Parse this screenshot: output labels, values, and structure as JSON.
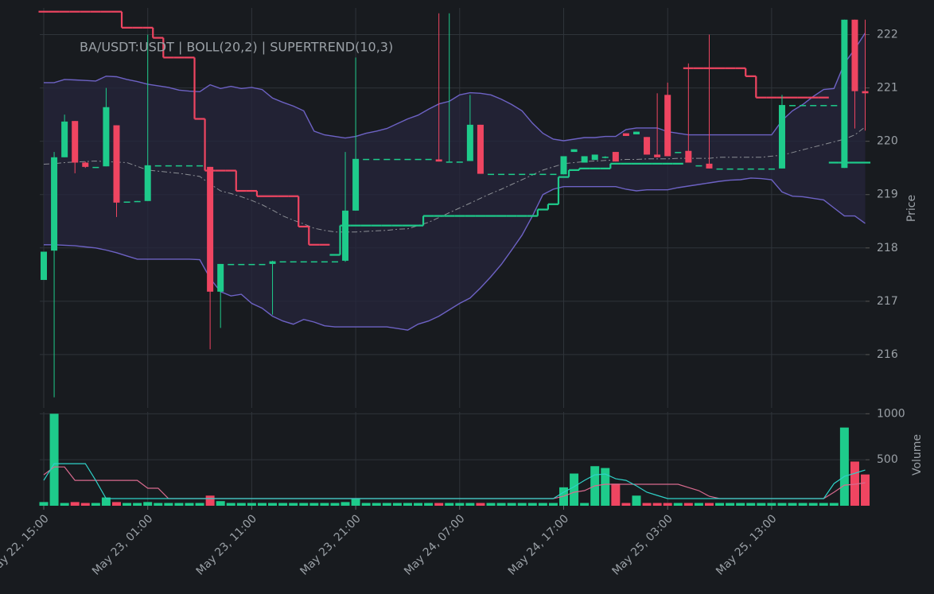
{
  "chart_data": {
    "type": "candlestick",
    "title": "BA/USDT:USDT | BOLL(20,2) | SUPERTREND(10,3)",
    "categories": [
      "May 22, 15:00",
      null,
      null,
      null,
      null,
      null,
      null,
      null,
      null,
      null,
      "May 23, 01:00",
      null,
      null,
      null,
      null,
      null,
      null,
      null,
      null,
      null,
      "May 23, 11:00",
      null,
      null,
      null,
      null,
      null,
      null,
      null,
      null,
      null,
      "May 23, 21:00",
      null,
      null,
      null,
      null,
      null,
      null,
      null,
      null,
      null,
      "May 24, 07:00",
      null,
      null,
      null,
      null,
      null,
      null,
      null,
      null,
      null,
      "May 24, 17:00",
      null,
      null,
      null,
      null,
      null,
      null,
      null,
      null,
      null,
      "May 25, 03:00",
      null,
      null,
      null,
      null,
      null,
      null,
      null,
      null,
      null,
      "May 25, 13:00",
      null,
      null,
      null,
      null,
      null,
      null,
      null,
      null,
      null
    ],
    "open": [
      217.4,
      217.95,
      219.7,
      220.38,
      219.6,
      219.52,
      219.53,
      220.3,
      218.87,
      218.87,
      218.88,
      219.55,
      219.55,
      219.55,
      219.55,
      219.55,
      219.52,
      217.18,
      217.7,
      217.7,
      217.7,
      217.7,
      217.7,
      217.75,
      217.75,
      217.75,
      217.75,
      217.75,
      217.75,
      217.76,
      218.7,
      219.67,
      219.67,
      219.67,
      219.67,
      219.67,
      219.67,
      219.67,
      219.66,
      219.62,
      219.62,
      219.63,
      220.31,
      219.39,
      219.39,
      219.39,
      219.39,
      219.39,
      219.39,
      219.39,
      219.38,
      219.8,
      219.6,
      219.65,
      219.7,
      219.8,
      220.15,
      220.13,
      220.08,
      219.75,
      220.87,
      219.8,
      219.82,
      219.55,
      219.58,
      219.49,
      219.49,
      219.49,
      219.49,
      219.49,
      219.49,
      219.49,
      220.68,
      220.68,
      220.68,
      220.68,
      220.68,
      219.5,
      222.28,
      220.94
    ],
    "high": [
      217.93,
      219.8,
      220.5,
      220.38,
      219.62,
      219.52,
      221.0,
      220.3,
      218.87,
      218.88,
      222.0,
      219.55,
      219.55,
      219.55,
      219.55,
      219.55,
      219.52,
      217.7,
      217.7,
      217.7,
      217.7,
      217.7,
      217.76,
      217.75,
      217.75,
      217.75,
      217.75,
      217.75,
      217.75,
      219.8,
      221.57,
      219.67,
      219.67,
      219.67,
      219.67,
      219.67,
      219.67,
      219.67,
      222.4,
      222.4,
      219.62,
      220.87,
      220.31,
      219.39,
      219.39,
      219.39,
      219.39,
      219.39,
      219.39,
      219.39,
      219.72,
      219.85,
      219.72,
      219.75,
      219.72,
      219.8,
      220.15,
      220.18,
      220.08,
      220.9,
      221.1,
      219.8,
      221.46,
      219.55,
      222.0,
      219.49,
      219.49,
      219.49,
      219.49,
      219.49,
      219.49,
      220.87,
      220.68,
      220.68,
      220.68,
      220.68,
      220.68,
      222.28,
      222.28,
      222.28
    ],
    "low": [
      217.4,
      215.2,
      219.7,
      219.4,
      219.5,
      219.52,
      219.53,
      218.58,
      218.87,
      218.87,
      218.88,
      219.55,
      219.55,
      219.55,
      219.55,
      219.55,
      216.1,
      216.5,
      217.7,
      217.7,
      217.7,
      217.7,
      216.75,
      217.75,
      217.75,
      217.75,
      217.75,
      217.75,
      217.75,
      217.74,
      218.7,
      219.67,
      219.67,
      219.67,
      219.67,
      219.67,
      219.67,
      219.67,
      219.62,
      219.62,
      219.62,
      219.63,
      219.39,
      219.39,
      219.39,
      219.39,
      219.39,
      219.39,
      219.39,
      219.39,
      219.38,
      219.8,
      219.6,
      219.65,
      219.68,
      219.62,
      220.1,
      220.13,
      219.75,
      219.7,
      219.72,
      219.8,
      219.6,
      219.55,
      219.49,
      219.49,
      219.49,
      219.49,
      219.49,
      219.49,
      219.49,
      219.49,
      220.68,
      220.68,
      220.68,
      220.68,
      220.68,
      219.5,
      220.24,
      220.2
    ],
    "close": [
      217.93,
      219.7,
      220.37,
      219.6,
      219.52,
      219.52,
      220.64,
      218.85,
      218.87,
      218.88,
      219.55,
      219.55,
      219.55,
      219.55,
      219.55,
      219.55,
      217.18,
      217.7,
      217.7,
      217.7,
      217.7,
      217.7,
      217.75,
      217.75,
      217.75,
      217.75,
      217.75,
      217.75,
      217.75,
      218.7,
      219.67,
      219.67,
      219.67,
      219.67,
      219.67,
      219.67,
      219.67,
      219.67,
      219.62,
      219.62,
      219.62,
      220.31,
      219.39,
      219.39,
      219.39,
      219.39,
      219.39,
      219.39,
      219.39,
      219.39,
      219.72,
      219.85,
      219.72,
      219.75,
      219.71,
      219.62,
      220.1,
      220.18,
      219.75,
      219.7,
      219.72,
      219.8,
      219.6,
      219.55,
      219.49,
      219.49,
      219.49,
      219.49,
      219.49,
      219.49,
      219.49,
      220.68,
      220.68,
      220.68,
      220.68,
      220.68,
      220.68,
      222.28,
      220.94,
      220.9
    ],
    "up_color": "#1ecb8b",
    "down_color": "#ef4561",
    "ylim": [
      215,
      222.5
    ],
    "yticks": [
      216,
      217,
      218,
      219,
      220,
      221,
      222
    ],
    "ylabel": "Price",
    "grid": true,
    "bollinger": {
      "band_color": "#6d62c4",
      "middle_color": "#8a8d93",
      "fill_color": "#25253c",
      "upper": [
        221.1,
        221.1,
        221.16,
        221.15,
        221.14,
        221.13,
        221.22,
        221.21,
        221.16,
        221.12,
        221.07,
        221.04,
        221.01,
        220.96,
        220.94,
        220.93,
        221.06,
        220.99,
        221.03,
        220.99,
        221.01,
        220.97,
        220.81,
        220.73,
        220.66,
        220.57,
        220.19,
        220.12,
        220.09,
        220.06,
        220.09,
        220.15,
        220.19,
        220.24,
        220.33,
        220.42,
        220.49,
        220.6,
        220.7,
        220.75,
        220.87,
        220.91,
        220.9,
        220.87,
        220.79,
        220.69,
        220.57,
        220.34,
        220.15,
        220.04,
        220.01,
        220.04,
        220.07,
        220.07,
        220.09,
        220.09,
        220.22,
        220.25,
        220.25,
        220.25,
        220.18,
        220.15,
        220.12,
        220.12,
        220.12,
        220.12,
        220.12,
        220.12,
        220.12,
        220.12,
        220.12,
        220.39,
        220.57,
        220.69,
        220.84,
        220.97,
        220.99,
        221.46,
        221.73,
        222.03
      ],
      "middle": [
        219.57,
        219.58,
        219.6,
        219.61,
        219.62,
        219.63,
        219.62,
        219.61,
        219.6,
        219.53,
        219.46,
        219.44,
        219.42,
        219.4,
        219.37,
        219.34,
        219.2,
        219.07,
        219.02,
        218.96,
        218.89,
        218.81,
        218.71,
        218.6,
        218.52,
        218.45,
        218.37,
        218.33,
        218.3,
        218.3,
        218.3,
        218.31,
        218.32,
        218.33,
        218.35,
        218.36,
        218.42,
        218.48,
        218.57,
        218.66,
        218.75,
        218.84,
        218.93,
        219.02,
        219.1,
        219.19,
        219.28,
        219.37,
        219.46,
        219.52,
        219.58,
        219.6,
        219.62,
        219.63,
        219.64,
        219.65,
        219.66,
        219.66,
        219.67,
        219.67,
        219.67,
        219.68,
        219.68,
        219.68,
        219.68,
        219.7,
        219.7,
        219.7,
        219.7,
        219.7,
        219.72,
        219.74,
        219.79,
        219.84,
        219.89,
        219.94,
        219.99,
        220.04,
        220.12,
        220.27
      ],
      "lower": [
        218.06,
        218.06,
        218.05,
        218.04,
        218.02,
        218.0,
        217.96,
        217.91,
        217.85,
        217.79,
        217.79,
        217.79,
        217.79,
        217.79,
        217.79,
        217.78,
        217.43,
        217.18,
        217.1,
        217.13,
        216.96,
        216.87,
        216.72,
        216.63,
        216.57,
        216.66,
        216.61,
        216.54,
        216.52,
        216.52,
        216.52,
        216.52,
        216.52,
        216.52,
        216.49,
        216.46,
        216.57,
        216.63,
        216.72,
        216.84,
        216.96,
        217.06,
        217.25,
        217.46,
        217.69,
        217.96,
        218.24,
        218.6,
        219.0,
        219.1,
        219.15,
        219.15,
        219.15,
        219.15,
        219.15,
        219.15,
        219.1,
        219.07,
        219.09,
        219.09,
        219.09,
        219.13,
        219.16,
        219.19,
        219.22,
        219.25,
        219.27,
        219.28,
        219.31,
        219.3,
        219.28,
        219.05,
        218.97,
        218.96,
        218.93,
        218.9,
        218.75,
        218.6,
        218.6,
        218.46
      ]
    },
    "supertrend": {
      "down": [
        222.43,
        222.43,
        222.43,
        222.43,
        222.43,
        222.43,
        222.43,
        222.43,
        222.13,
        222.13,
        222.13,
        221.94,
        221.57,
        221.57,
        221.57,
        220.42,
        219.45,
        219.45,
        219.45,
        219.07,
        219.07,
        218.97,
        218.97,
        218.97,
        218.97,
        218.4,
        218.06,
        218.06,
        null,
        null,
        null,
        null,
        null,
        null,
        null,
        null,
        null,
        null,
        null,
        null,
        null,
        null,
        null,
        null,
        null,
        null,
        null,
        null,
        null,
        null,
        null,
        null,
        null,
        null,
        null,
        null,
        null,
        null,
        null,
        null,
        null,
        null,
        221.37,
        221.37,
        221.37,
        221.37,
        221.37,
        221.37,
        221.22,
        220.82,
        220.82,
        220.82,
        220.82,
        220.82,
        220.82,
        220.82,
        null,
        null,
        null,
        null
      ],
      "up": [
        null,
        null,
        null,
        null,
        null,
        null,
        null,
        null,
        null,
        null,
        null,
        null,
        null,
        null,
        null,
        null,
        null,
        null,
        null,
        null,
        null,
        null,
        null,
        null,
        null,
        null,
        null,
        null,
        217.87,
        218.42,
        218.42,
        218.42,
        218.42,
        218.42,
        218.42,
        218.42,
        218.42,
        218.6,
        218.6,
        218.6,
        218.6,
        218.6,
        218.6,
        218.6,
        218.6,
        218.6,
        218.6,
        218.6,
        218.72,
        218.82,
        219.33,
        219.46,
        219.49,
        219.49,
        219.49,
        219.58,
        219.58,
        219.58,
        219.58,
        219.58,
        219.58,
        219.58,
        null,
        null,
        null,
        null,
        null,
        null,
        null,
        null,
        null,
        null,
        null,
        null,
        null,
        null,
        219.6,
        219.6,
        219.6,
        219.6
      ],
      "down_color": "#ef4561",
      "up_color": "#1ecb8b"
    },
    "volume": {
      "ylabel": "Volume",
      "ylim": [
        0,
        1020
      ],
      "yticks": [
        500,
        1000
      ],
      "values": [
        40,
        1000,
        30,
        40,
        30,
        30,
        90,
        40,
        30,
        30,
        40,
        30,
        30,
        30,
        30,
        30,
        110,
        50,
        30,
        30,
        30,
        30,
        30,
        30,
        30,
        30,
        30,
        30,
        30,
        40,
        80,
        30,
        30,
        30,
        30,
        30,
        30,
        30,
        30,
        30,
        30,
        30,
        30,
        30,
        30,
        30,
        30,
        30,
        30,
        30,
        200,
        350,
        30,
        430,
        410,
        240,
        30,
        110,
        30,
        30,
        30,
        30,
        30,
        30,
        30,
        30,
        30,
        30,
        30,
        30,
        30,
        30,
        30,
        30,
        30,
        30,
        30,
        850,
        480,
        340
      ],
      "ma_fast": [
        276,
        457,
        457,
        457,
        457,
        276,
        78,
        78,
        78,
        78,
        78,
        78,
        78,
        78,
        78,
        78,
        78,
        78,
        78,
        78,
        78,
        78,
        78,
        78,
        78,
        78,
        78,
        78,
        78,
        78,
        78,
        78,
        78,
        78,
        78,
        78,
        78,
        78,
        78,
        78,
        78,
        78,
        78,
        78,
        78,
        78,
        78,
        78,
        78,
        78,
        147,
        207,
        276,
        336,
        345,
        293,
        276,
        216,
        147,
        112,
        78,
        78,
        78,
        78,
        78,
        78,
        78,
        78,
        78,
        78,
        78,
        78,
        78,
        78,
        78,
        78,
        241,
        319,
        353,
        388
      ],
      "ma_slow": [
        336,
        422,
        422,
        276,
        276,
        276,
        276,
        276,
        276,
        276,
        190,
        190,
        78,
        78,
        78,
        78,
        78,
        78,
        78,
        78,
        78,
        78,
        78,
        78,
        78,
        78,
        78,
        78,
        78,
        78,
        78,
        78,
        78,
        78,
        78,
        78,
        78,
        78,
        78,
        78,
        78,
        78,
        78,
        78,
        78,
        78,
        78,
        78,
        78,
        78,
        103,
        147,
        164,
        216,
        233,
        233,
        233,
        233,
        233,
        233,
        233,
        233,
        198,
        164,
        103,
        78,
        78,
        78,
        78,
        78,
        78,
        78,
        78,
        78,
        78,
        78,
        147,
        224,
        233,
        250
      ],
      "ma_fast_color": "#2fd1c8",
      "ma_slow_color": "#d86a8e"
    }
  }
}
